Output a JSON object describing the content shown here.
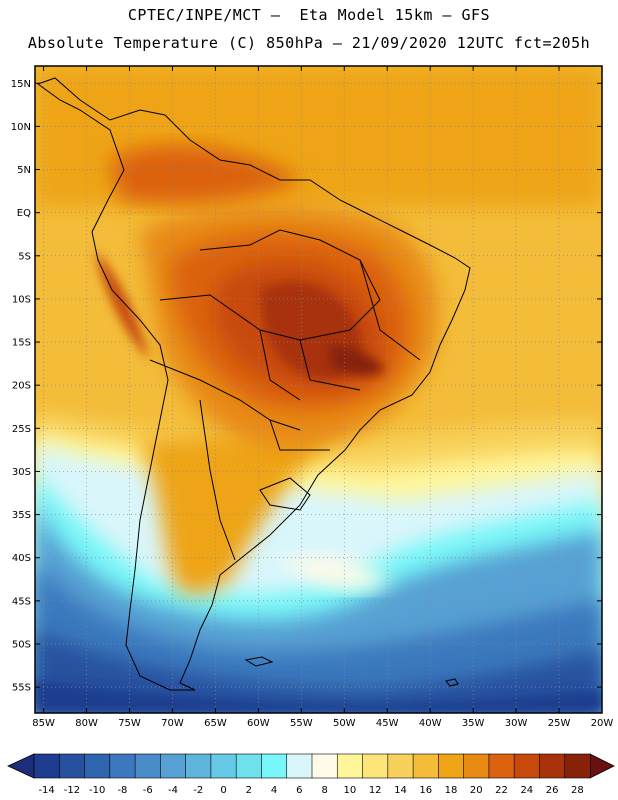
{
  "header": {
    "title_line1": "CPTEC/INPE/MCT –  Eta Model 15km – GFS",
    "title_line2": "Absolute Temperature (C) 850hPa – 21/09/2020 12UTC fct=205h"
  },
  "map": {
    "lat_labels": [
      "15N",
      "10N",
      "5N",
      "EQ",
      "5S",
      "10S",
      "15S",
      "20S",
      "25S",
      "30S",
      "35S",
      "40S",
      "45S",
      "50S",
      "55S"
    ],
    "lon_labels": [
      "85W",
      "80W",
      "75W",
      "70W",
      "65W",
      "60W",
      "55W",
      "50W",
      "45W",
      "40W",
      "35W",
      "30W",
      "25W",
      "20W"
    ],
    "lat_range": [
      -58,
      17
    ],
    "lon_range": [
      -86,
      -20
    ]
  },
  "colorbar": {
    "tick_labels": [
      "-14",
      "-12",
      "-10",
      "-8",
      "-6",
      "-4",
      "-2",
      "0",
      "2",
      "4",
      "6",
      "8",
      "10",
      "12",
      "14",
      "16",
      "18",
      "20",
      "22",
      "24",
      "26",
      "28"
    ],
    "colors": [
      "#1e3d8f",
      "#27519f",
      "#2f64ae",
      "#3b78bd",
      "#4a8cc8",
      "#56a0d3",
      "#5fb4dc",
      "#66c9e6",
      "#6ee0ee",
      "#78f6f8",
      "#d9f6fb",
      "#fffbe8",
      "#fff69a",
      "#fde579",
      "#f8d15a",
      "#f3bc39",
      "#eea416",
      "#e88a14",
      "#dc6210",
      "#c74a0c",
      "#a8330a",
      "#852208"
    ],
    "under_color": "#1e2d7a",
    "over_color": "#6b1010"
  }
}
